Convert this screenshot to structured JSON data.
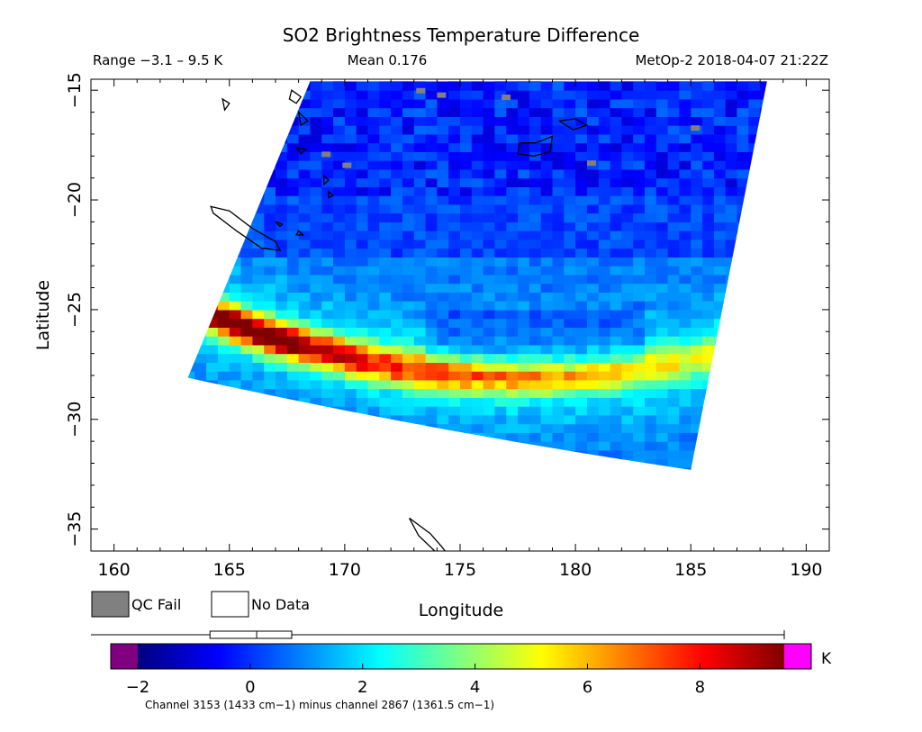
{
  "chart_data": {
    "type": "heatmap",
    "title": "SO2 Brightness Temperature Difference",
    "subtitle_left": "Range −3.1 – 9.5 K",
    "subtitle_center": "Mean 0.176",
    "subtitle_right": "MetOp-2 2018-04-07 21:22Z",
    "xlabel": "Longitude",
    "ylabel": "Latitude",
    "xlim": [
      159,
      191
    ],
    "ylim": [
      -36,
      -14.5
    ],
    "x_ticks": [
      160,
      165,
      170,
      175,
      180,
      185,
      190
    ],
    "y_ticks": [
      -15,
      -20,
      -25,
      -30,
      -35
    ],
    "x_tick_labels": [
      "160",
      "165",
      "170",
      "175",
      "180",
      "185",
      "190"
    ],
    "y_tick_labels": [
      "−15",
      "−20",
      "−25",
      "−30",
      "−35"
    ],
    "swath_corners": [
      [
        163.2,
        -28.1
      ],
      [
        168.5,
        -14.6
      ],
      [
        188.3,
        -14.6
      ],
      [
        185.0,
        -32.3
      ]
    ],
    "plume": {
      "description_values": "max ~9.5 K near 165-168E",
      "band_lat_at_163": -25.0,
      "band_lat_at_188": -26.6,
      "band_bow_deg": 2.4
    },
    "colorbar": {
      "min": -2.5,
      "max": 9.5,
      "ticks": [
        -2,
        0,
        2,
        4,
        6,
        8
      ],
      "tick_labels": [
        "−2",
        "0",
        "2",
        "4",
        "6",
        "8"
      ],
      "unit": "K",
      "under_color": "#800080",
      "over_color": "#ff00ff",
      "colors": [
        "#000080",
        "#0000ff",
        "#0080ff",
        "#00ffff",
        "#80ff80",
        "#ffff00",
        "#ff8000",
        "#ff0000",
        "#800000"
      ],
      "caption": "Channel 3153 (1433 cm−1) minus channel 2867 (1361.5 cm−1)",
      "boxplot": {
        "min": -2.5,
        "q1": -0.8,
        "median": 0.0,
        "q3": 0.6,
        "max": 9.5
      }
    },
    "legend": [
      {
        "label": "QC Fail",
        "color": "#808080"
      },
      {
        "label": "No Data",
        "color": "#ffffff"
      }
    ],
    "grid": false
  }
}
